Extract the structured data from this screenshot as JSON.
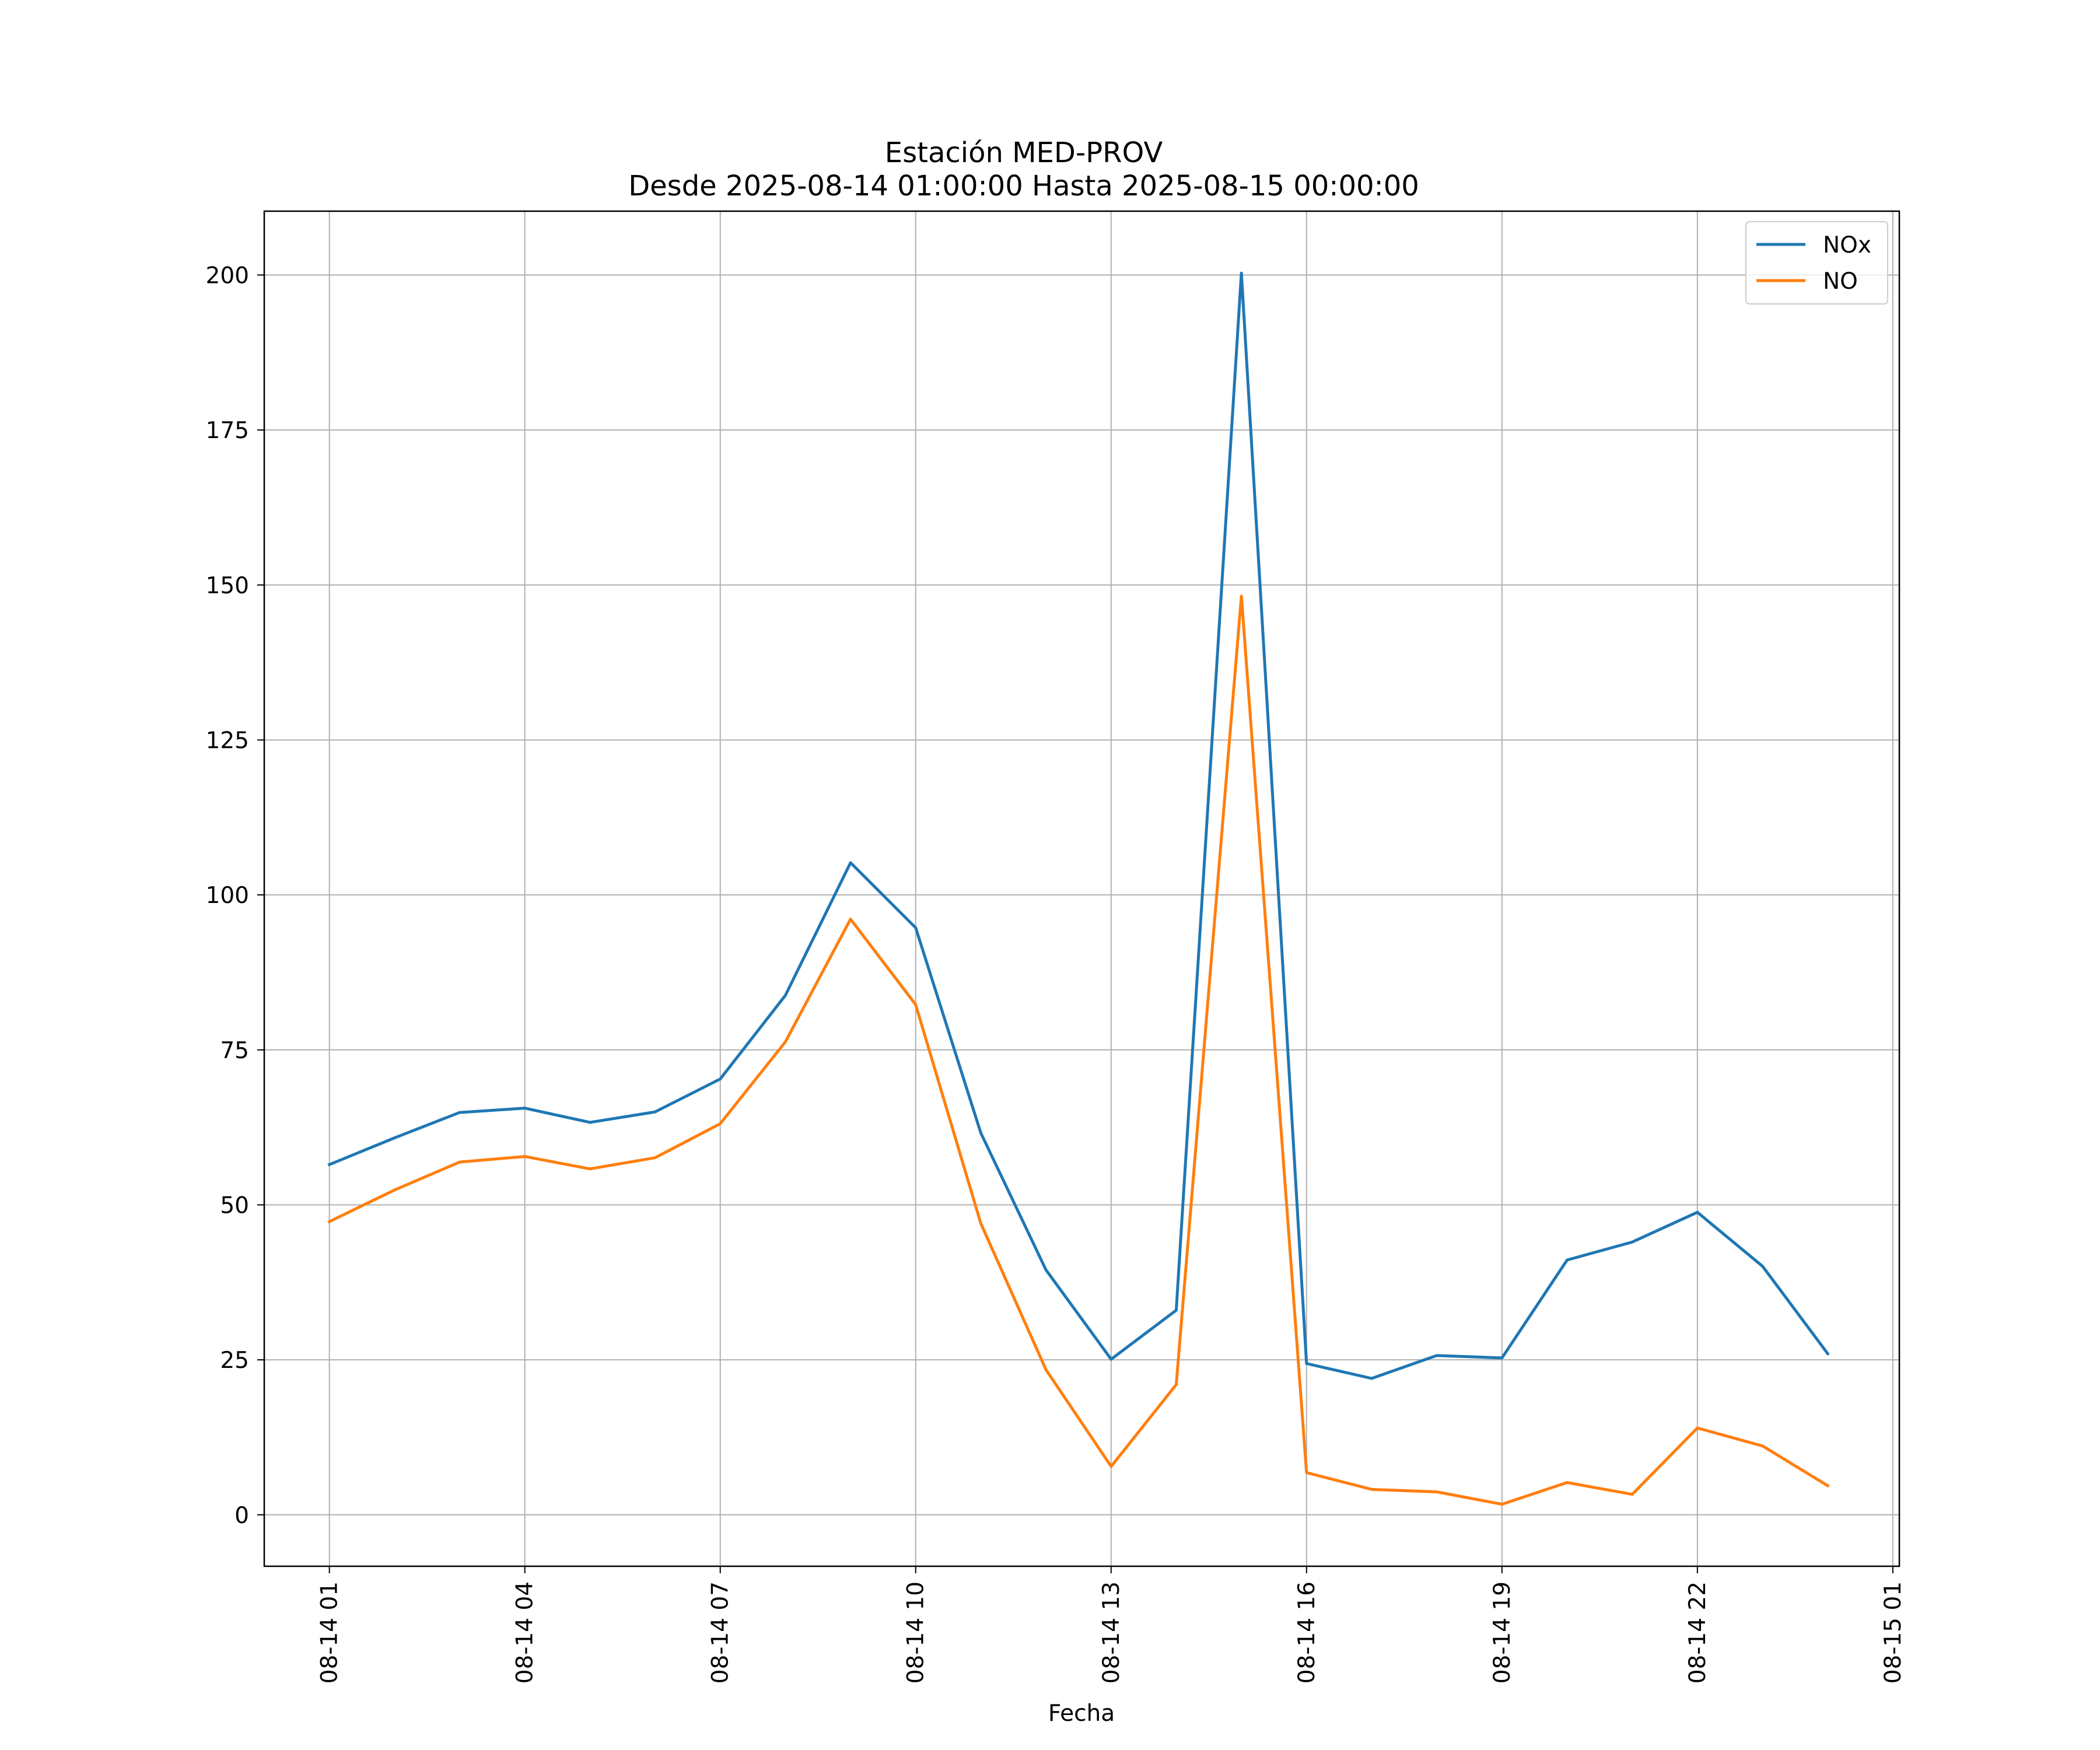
{
  "chart_data": {
    "type": "line",
    "title_line1": "Estación MED-PROV",
    "title_line2": "Desde 2025-08-14 01:00:00 Hasta 2025-08-15 00:00:00",
    "xlabel": "Fecha",
    "ylabel": "",
    "x": [
      "2025-08-14 01:00",
      "2025-08-14 02:00",
      "2025-08-14 03:00",
      "2025-08-14 04:00",
      "2025-08-14 05:00",
      "2025-08-14 06:00",
      "2025-08-14 07:00",
      "2025-08-14 08:00",
      "2025-08-14 09:00",
      "2025-08-14 10:00",
      "2025-08-14 11:00",
      "2025-08-14 12:00",
      "2025-08-14 13:00",
      "2025-08-14 14:00",
      "2025-08-14 15:00",
      "2025-08-14 16:00",
      "2025-08-14 17:00",
      "2025-08-14 18:00",
      "2025-08-14 19:00",
      "2025-08-14 20:00",
      "2025-08-14 21:00",
      "2025-08-14 22:00",
      "2025-08-14 23:00",
      "2025-08-15 00:00"
    ],
    "x_range": [
      "2025-08-14 00:00",
      "2025-08-15 01:06"
    ],
    "x_ticks": [
      "2025-08-14 01:00",
      "2025-08-14 04:00",
      "2025-08-14 07:00",
      "2025-08-14 10:00",
      "2025-08-14 13:00",
      "2025-08-14 16:00",
      "2025-08-14 19:00",
      "2025-08-14 22:00",
      "2025-08-15 01:00"
    ],
    "x_tick_labels": [
      "08-14 01",
      "08-14 04",
      "08-14 07",
      "08-14 10",
      "08-14 13",
      "08-14 16",
      "08-14 19",
      "08-14 22",
      "08-15 01"
    ],
    "ylim": [
      -8.3,
      210.3
    ],
    "y_ticks": [
      0,
      25,
      50,
      75,
      100,
      125,
      150,
      175,
      200
    ],
    "y_tick_labels": [
      "0",
      "25",
      "50",
      "75",
      "100",
      "125",
      "150",
      "175",
      "200"
    ],
    "grid": true,
    "legend_position": "top-right",
    "series": [
      {
        "name": "NOx",
        "color": "#1f77b4",
        "values": [
          56.5,
          60.8,
          64.9,
          65.6,
          63.3,
          65.0,
          70.3,
          83.8,
          105.2,
          94.7,
          61.6,
          39.5,
          25.1,
          33.0,
          200.3,
          24.4,
          22.0,
          25.7,
          25.3,
          41.1,
          44.0,
          48.8,
          40.1,
          26.0
        ]
      },
      {
        "name": "NO",
        "color": "#ff7f0e",
        "values": [
          47.3,
          52.4,
          56.9,
          57.8,
          55.8,
          57.6,
          63.1,
          76.3,
          96.1,
          82.3,
          47.0,
          23.4,
          7.8,
          21.0,
          148.2,
          6.8,
          4.1,
          3.7,
          1.7,
          5.2,
          3.3,
          14.0,
          11.1,
          4.7
        ]
      }
    ]
  }
}
